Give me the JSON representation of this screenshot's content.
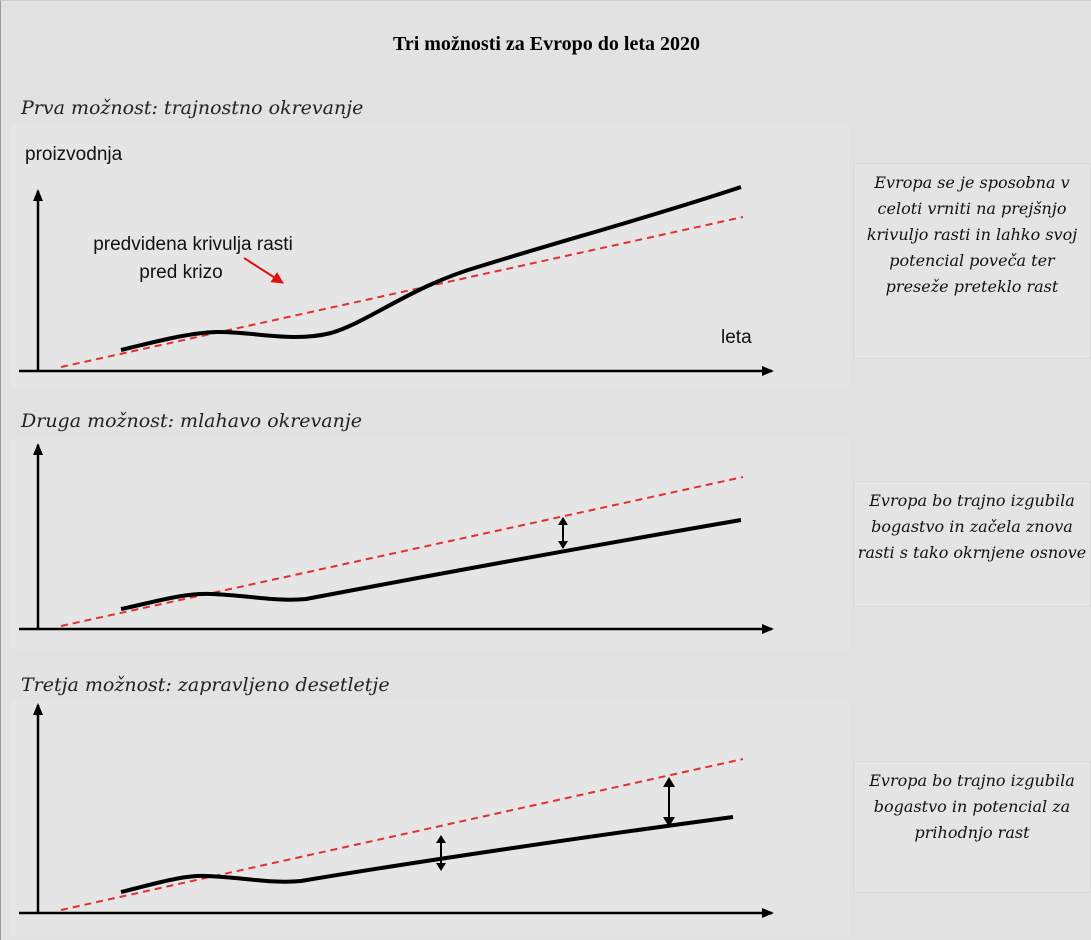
{
  "title": "Tri možnosti za Evropo do leta 2020",
  "panels": [
    {
      "title": "Prva možnost: trajnostno okrevanje",
      "y_axis_label": "proizvodnja",
      "x_axis_label": "leta",
      "trend_label_line1": "predvidena krivulja rasti",
      "trend_label_line2": "pred krizo",
      "description": "Evropa se je sposobna v celoti vrniti na prejšnjo krivuljo rasti in lahko svoj potencial poveča ter preseže preteklo rast"
    },
    {
      "title": "Druga možnost: mlahavo okrevanje",
      "description": "Evropa bo trajno izgubila bogastvo in začela znova rasti s tako okrnjene osnove"
    },
    {
      "title": "Tretja možnost: zapravljeno desetletje",
      "description": "Evropa bo trajno izgubila bogastvo in potencial za prihodnjo rast"
    }
  ],
  "colors": {
    "trend_line": "#e03030",
    "output_line": "#000000",
    "annotation_arrow": "#e01010",
    "background": "#e2e2e2"
  },
  "icons": [
    "double-headed-arrow-icon",
    "red-pointer-arrow-icon"
  ]
}
